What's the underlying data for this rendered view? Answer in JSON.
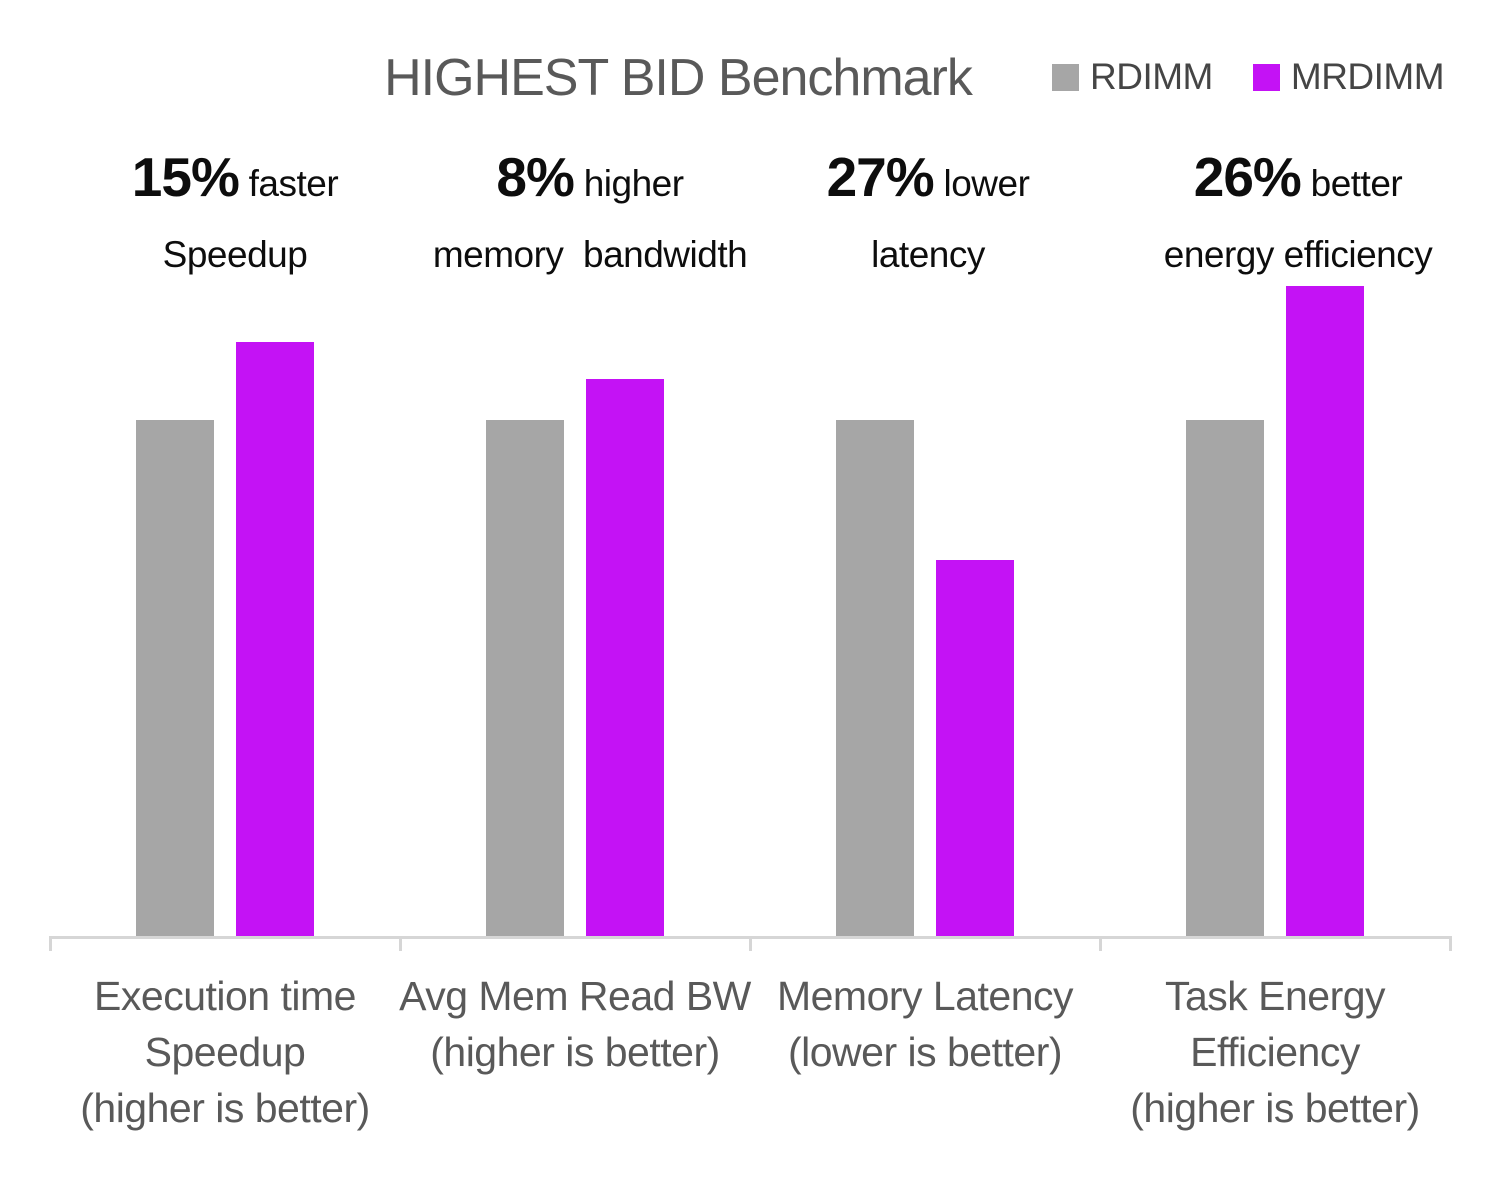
{
  "title": "HIGHEST BID Benchmark",
  "legend": {
    "items": [
      {
        "label": "RDIMM",
        "color": "#A6A6A6"
      },
      {
        "label": "MRDIMM",
        "color": "#C412F5"
      }
    ]
  },
  "annotations": [
    {
      "stat": "15%",
      "qualifier": "faster",
      "line2": "Speedup"
    },
    {
      "stat": "8%",
      "qualifier": "higher",
      "line2": "memory  bandwidth"
    },
    {
      "stat": "27%",
      "qualifier": "lower",
      "line2": "latency"
    },
    {
      "stat": "26%",
      "qualifier": "better",
      "line2": "energy efficiency"
    }
  ],
  "x_axis": {
    "categories": [
      [
        "Execution time",
        "Speedup",
        "(higher is better)"
      ],
      [
        "Avg Mem Read BW",
        "(higher is better)"
      ],
      [
        "Memory Latency",
        "(lower is better)"
      ],
      [
        "Task Energy",
        "Efficiency",
        "(higher is better)"
      ]
    ]
  },
  "chart_data": {
    "type": "bar",
    "title": "HIGHEST BID Benchmark",
    "categories": [
      "Execution time Speedup (higher is better)",
      "Avg Mem Read BW (higher is better)",
      "Memory Latency (lower is better)",
      "Task Energy Efficiency (higher is better)"
    ],
    "series": [
      {
        "name": "RDIMM",
        "color": "#A6A6A6",
        "values": [
          1.0,
          1.0,
          1.0,
          1.0
        ]
      },
      {
        "name": "MRDIMM",
        "color": "#C412F5",
        "values": [
          1.15,
          1.08,
          0.73,
          1.26
        ]
      }
    ],
    "value_basis": "normalized to RDIMM = 1.0",
    "annotations": [
      "15% faster Speedup",
      "8% higher memory  bandwidth",
      "27% lower latency",
      "26% better energy efficiency"
    ],
    "ylim": [
      0,
      1.35
    ],
    "grid": false,
    "y_axis_visible": false,
    "legend_position": "top-right"
  },
  "colors": {
    "title_text": "#595959",
    "axis_label_text": "#595959",
    "annotation_text": "#0D0D0D",
    "legend_text": "#454545",
    "axis_line": "#D6D6D6"
  }
}
